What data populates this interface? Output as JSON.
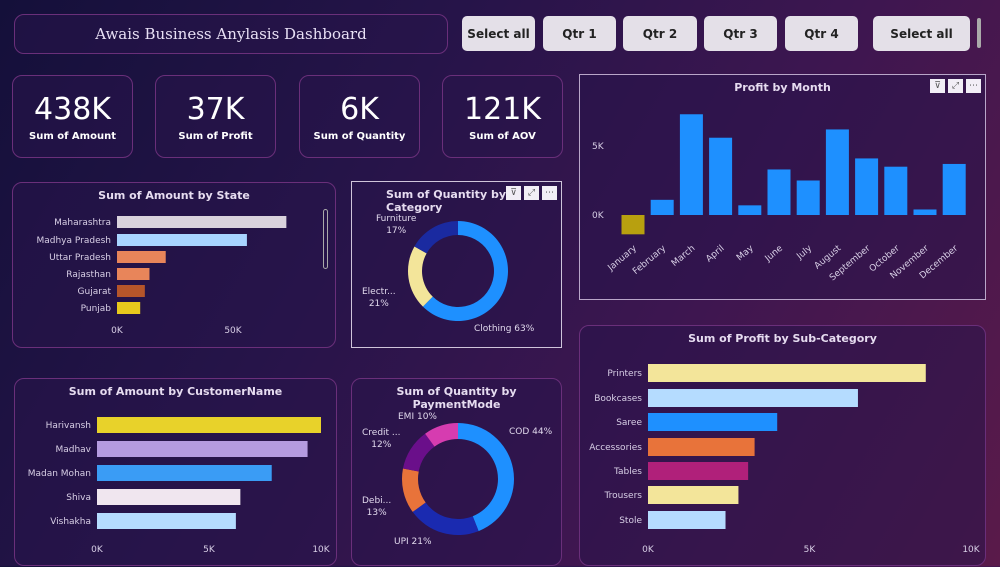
{
  "header": {
    "title": "Awais Business Anylasis Dashboard"
  },
  "slicer": {
    "buttons": [
      "Select all",
      "Qtr 1",
      "Qtr 2",
      "Qtr 3",
      "Qtr 4"
    ],
    "select_all_2": "Select all"
  },
  "kpis": [
    {
      "value": "438K",
      "label": "Sum of Amount"
    },
    {
      "value": "37K",
      "label": "Sum of Profit"
    },
    {
      "value": "6K",
      "label": "Sum of Quantity"
    },
    {
      "value": "121K",
      "label": "Sum of AOV"
    }
  ],
  "chart_data": [
    {
      "id": "month",
      "type": "bar",
      "title": "Profit by Month",
      "categories": [
        "January",
        "February",
        "March",
        "April",
        "May",
        "June",
        "July",
        "August",
        "September",
        "October",
        "November",
        "December"
      ],
      "values": [
        -1.4,
        1.1,
        7.3,
        5.6,
        0.7,
        3.3,
        2.5,
        6.2,
        4.1,
        3.5,
        0.4,
        3.7
      ],
      "unit": "K",
      "yticks": [
        "0K",
        "5K"
      ],
      "colors": {
        "default": "#1e90ff",
        "negative": "#b8a00f"
      }
    },
    {
      "id": "state",
      "type": "bar",
      "orientation": "horizontal",
      "title": "Sum of Amount by State",
      "categories": [
        "Maharashtra",
        "Madhya Pradesh",
        "Uttar Pradesh",
        "Rajasthan",
        "Gujarat",
        "Punjab"
      ],
      "values": [
        73,
        56,
        21,
        14,
        12,
        10
      ],
      "unit": "K",
      "xticks": [
        "0K",
        "50K"
      ],
      "colors": [
        "#d9d2dc",
        "#a8d4ff",
        "#e8855a",
        "#e8855a",
        "#b5552a",
        "#e8c91c"
      ]
    },
    {
      "id": "category",
      "type": "pie",
      "title": "Sum of Quantity by Category",
      "labels": [
        "Clothing",
        "Electronics",
        "Furniture"
      ],
      "display_labels": [
        "Clothing 63%",
        "Electr...\n21%",
        "Furniture\n17%"
      ],
      "values": [
        63,
        21,
        17
      ],
      "colors": [
        "#1e90ff",
        "#f3e59a",
        "#1a2aa0"
      ]
    },
    {
      "id": "customer",
      "type": "bar",
      "orientation": "horizontal",
      "title": "Sum of Amount by CustomerName",
      "categories": [
        "Harivansh",
        "Madhav",
        "Madan Mohan",
        "Shiva",
        "Vishakha"
      ],
      "values": [
        10.0,
        9.4,
        7.8,
        6.4,
        6.2
      ],
      "unit": "K",
      "xticks": [
        "0K",
        "5K",
        "10K"
      ],
      "colors": [
        "#e8d22a",
        "#b59be0",
        "#3a9cf5",
        "#f0e6ef",
        "#b5dcff"
      ]
    },
    {
      "id": "payment",
      "type": "pie",
      "title": "Sum of Quantity by PaymentMode",
      "labels": [
        "COD",
        "UPI",
        "Debit Card",
        "Credit Card",
        "EMI"
      ],
      "display_labels": [
        "COD 44%",
        "UPI 21%",
        "Debi...\n13%",
        "Credit ...\n12%",
        "EMI 10%"
      ],
      "values": [
        44,
        21,
        13,
        12,
        10
      ],
      "colors": [
        "#1e90ff",
        "#1a2ab0",
        "#e8733a",
        "#6a0f8a",
        "#d63cb0"
      ]
    },
    {
      "id": "subcat",
      "type": "bar",
      "orientation": "horizontal",
      "title": "Sum of Profit by Sub-Category",
      "categories": [
        "Printers",
        "Bookcases",
        "Saree",
        "Accessories",
        "Tables",
        "Trousers",
        "Stole"
      ],
      "values": [
        8.6,
        6.5,
        4.0,
        3.3,
        3.1,
        2.8,
        2.4
      ],
      "unit": "K",
      "xticks": [
        "0K",
        "5K",
        "10K"
      ],
      "colors": [
        "#f3e59a",
        "#b5dcff",
        "#1e90ff",
        "#e8733a",
        "#b0207a",
        "#f3e59a",
        "#b5dcff"
      ]
    }
  ],
  "visual_header": {
    "filter": "filter-icon",
    "focus": "focus-mode-icon",
    "more": "more-options-icon"
  }
}
